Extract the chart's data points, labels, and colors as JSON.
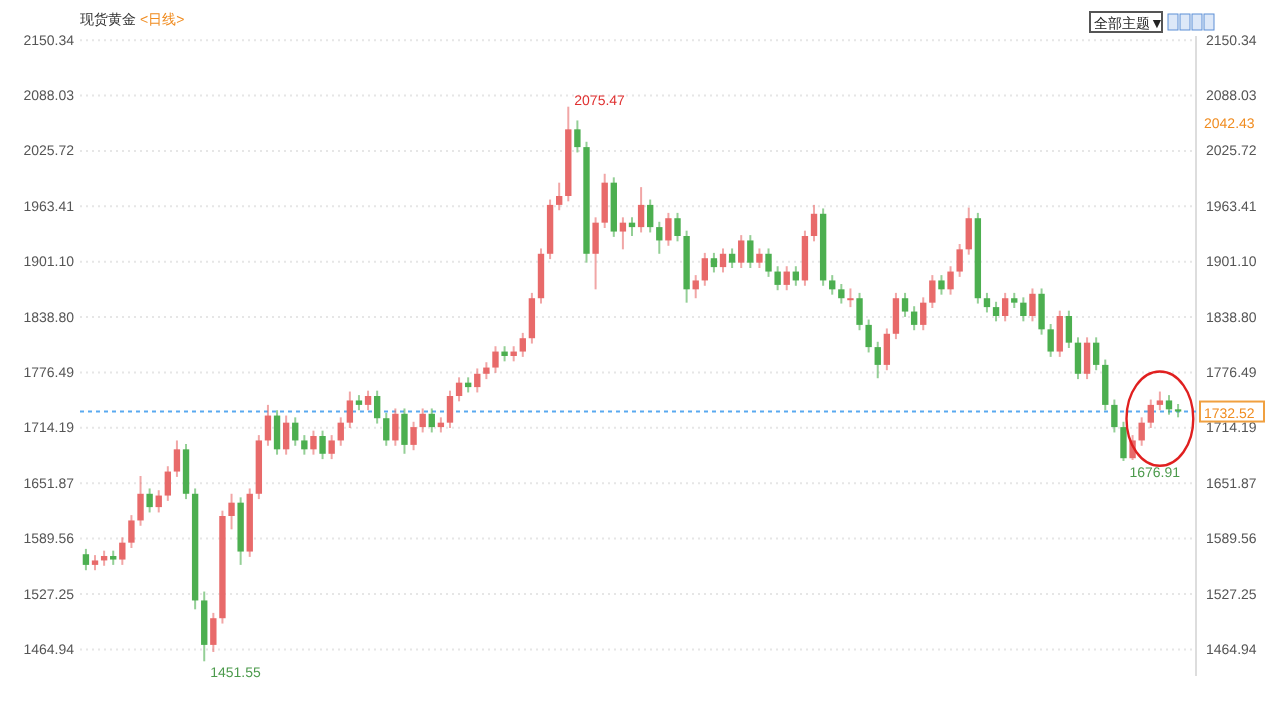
{
  "chart_data": {
    "type": "candlestick",
    "title": "现货黄金",
    "subtitle": "<日线>",
    "categories": [
      null,
      null,
      null,
      null,
      null,
      null,
      null,
      null,
      null,
      null,
      null,
      null,
      null,
      null,
      null,
      null,
      null,
      null,
      null,
      null,
      null,
      null,
      null,
      null,
      null,
      null,
      null,
      null,
      null,
      null,
      null,
      null,
      null,
      null,
      null,
      null,
      null,
      null,
      null,
      null,
      null,
      null,
      null,
      null,
      null,
      null,
      null,
      null,
      null,
      null,
      null,
      null,
      null,
      null,
      null,
      null,
      null,
      null,
      null,
      null,
      null,
      null,
      null,
      null,
      null,
      null,
      null,
      null,
      null,
      null,
      null,
      null,
      null,
      null,
      null,
      null,
      null,
      null,
      null,
      null,
      null,
      null,
      null,
      null,
      null,
      null,
      null,
      null,
      null,
      null,
      null,
      null,
      null,
      null,
      null,
      null,
      null,
      null,
      null,
      null,
      null,
      null,
      null,
      null,
      null,
      null,
      null,
      null,
      null,
      null,
      null,
      null,
      null,
      null,
      null,
      null,
      null,
      null,
      null,
      null,
      null
    ],
    "ohlc": [
      [
        1572,
        1578,
        1554,
        1560
      ],
      [
        1560,
        1571,
        1554,
        1565
      ],
      [
        1565,
        1576,
        1559,
        1570
      ],
      [
        1570,
        1576,
        1560,
        1566
      ],
      [
        1566,
        1591,
        1560,
        1585
      ],
      [
        1585,
        1616,
        1579,
        1610
      ],
      [
        1610,
        1660,
        1604,
        1640
      ],
      [
        1640,
        1646,
        1619,
        1625
      ],
      [
        1625,
        1644,
        1619,
        1638
      ],
      [
        1638,
        1671,
        1632,
        1665
      ],
      [
        1665,
        1700,
        1659,
        1690
      ],
      [
        1690,
        1696,
        1634,
        1640
      ],
      [
        1640,
        1646,
        1510,
        1520
      ],
      [
        1520,
        1530,
        1451.55,
        1470
      ],
      [
        1470,
        1506,
        1462,
        1500
      ],
      [
        1500,
        1621,
        1494,
        1615
      ],
      [
        1615,
        1640,
        1600,
        1630
      ],
      [
        1630,
        1636,
        1560,
        1575
      ],
      [
        1575,
        1646,
        1569,
        1640
      ],
      [
        1640,
        1706,
        1634,
        1700
      ],
      [
        1700,
        1740,
        1694,
        1728
      ],
      [
        1728,
        1734,
        1684,
        1690
      ],
      [
        1690,
        1728,
        1684,
        1720
      ],
      [
        1720,
        1726,
        1694,
        1700
      ],
      [
        1700,
        1706,
        1684,
        1690
      ],
      [
        1690,
        1711,
        1684,
        1705
      ],
      [
        1705,
        1711,
        1679,
        1685
      ],
      [
        1685,
        1706,
        1679,
        1700
      ],
      [
        1700,
        1726,
        1694,
        1720
      ],
      [
        1720,
        1755,
        1714,
        1745
      ],
      [
        1745,
        1751,
        1734,
        1740
      ],
      [
        1740,
        1756,
        1734,
        1750
      ],
      [
        1750,
        1756,
        1719,
        1725
      ],
      [
        1725,
        1731,
        1694,
        1700
      ],
      [
        1700,
        1736,
        1694,
        1730
      ],
      [
        1730,
        1736,
        1685,
        1695
      ],
      [
        1695,
        1721,
        1689,
        1715
      ],
      [
        1715,
        1736,
        1709,
        1730
      ],
      [
        1730,
        1736,
        1709,
        1715
      ],
      [
        1715,
        1726,
        1709,
        1720
      ],
      [
        1720,
        1756,
        1714,
        1750
      ],
      [
        1750,
        1771,
        1744,
        1765
      ],
      [
        1765,
        1771,
        1754,
        1760
      ],
      [
        1760,
        1781,
        1754,
        1775
      ],
      [
        1775,
        1788,
        1769,
        1782
      ],
      [
        1782,
        1806,
        1776,
        1800
      ],
      [
        1800,
        1806,
        1789,
        1795
      ],
      [
        1795,
        1806,
        1789,
        1800
      ],
      [
        1800,
        1821,
        1794,
        1815
      ],
      [
        1815,
        1866,
        1809,
        1860
      ],
      [
        1860,
        1916,
        1854,
        1910
      ],
      [
        1910,
        1971,
        1904,
        1965
      ],
      [
        1965,
        1990,
        1959,
        1975
      ],
      [
        1975,
        2075.47,
        1969,
        2050
      ],
      [
        2050,
        2060,
        2024,
        2030
      ],
      [
        2030,
        2036,
        1900,
        1910
      ],
      [
        1910,
        1951,
        1870,
        1945
      ],
      [
        1945,
        2000,
        1939,
        1990
      ],
      [
        1990,
        1996,
        1929,
        1935
      ],
      [
        1935,
        1951,
        1915,
        1945
      ],
      [
        1945,
        1951,
        1930,
        1940
      ],
      [
        1940,
        1985,
        1934,
        1965
      ],
      [
        1965,
        1971,
        1934,
        1940
      ],
      [
        1940,
        1946,
        1910,
        1925
      ],
      [
        1925,
        1956,
        1919,
        1950
      ],
      [
        1950,
        1956,
        1924,
        1930
      ],
      [
        1930,
        1936,
        1855,
        1870
      ],
      [
        1870,
        1886,
        1860,
        1880
      ],
      [
        1880,
        1911,
        1874,
        1905
      ],
      [
        1905,
        1911,
        1889,
        1895
      ],
      [
        1895,
        1916,
        1889,
        1910
      ],
      [
        1910,
        1916,
        1894,
        1900
      ],
      [
        1900,
        1931,
        1894,
        1925
      ],
      [
        1925,
        1931,
        1894,
        1900
      ],
      [
        1900,
        1916,
        1894,
        1910
      ],
      [
        1910,
        1916,
        1884,
        1890
      ],
      [
        1890,
        1896,
        1869,
        1875
      ],
      [
        1875,
        1896,
        1869,
        1890
      ],
      [
        1890,
        1896,
        1874,
        1880
      ],
      [
        1880,
        1936,
        1874,
        1930
      ],
      [
        1930,
        1965,
        1924,
        1955
      ],
      [
        1955,
        1961,
        1874,
        1880
      ],
      [
        1880,
        1886,
        1864,
        1870
      ],
      [
        1870,
        1876,
        1854,
        1860
      ],
      [
        1858,
        1871,
        1850,
        1860
      ],
      [
        1860,
        1866,
        1824,
        1830
      ],
      [
        1830,
        1836,
        1799,
        1805
      ],
      [
        1805,
        1811,
        1770,
        1785
      ],
      [
        1785,
        1826,
        1779,
        1820
      ],
      [
        1820,
        1866,
        1814,
        1860
      ],
      [
        1860,
        1866,
        1839,
        1845
      ],
      [
        1845,
        1851,
        1824,
        1830
      ],
      [
        1830,
        1861,
        1824,
        1855
      ],
      [
        1855,
        1886,
        1849,
        1880
      ],
      [
        1880,
        1886,
        1864,
        1870
      ],
      [
        1870,
        1896,
        1864,
        1890
      ],
      [
        1890,
        1921,
        1884,
        1915
      ],
      [
        1915,
        1962,
        1909,
        1950
      ],
      [
        1950,
        1956,
        1854,
        1860
      ],
      [
        1860,
        1866,
        1844,
        1850
      ],
      [
        1850,
        1856,
        1834,
        1840
      ],
      [
        1840,
        1866,
        1834,
        1860
      ],
      [
        1860,
        1866,
        1849,
        1855
      ],
      [
        1855,
        1861,
        1834,
        1840
      ],
      [
        1840,
        1871,
        1834,
        1865
      ],
      [
        1865,
        1871,
        1819,
        1825
      ],
      [
        1825,
        1831,
        1794,
        1800
      ],
      [
        1800,
        1846,
        1794,
        1840
      ],
      [
        1840,
        1846,
        1804,
        1810
      ],
      [
        1810,
        1816,
        1769,
        1775
      ],
      [
        1775,
        1816,
        1769,
        1810
      ],
      [
        1810,
        1816,
        1779,
        1785
      ],
      [
        1785,
        1791,
        1734,
        1740
      ],
      [
        1740,
        1746,
        1709,
        1715
      ],
      [
        1715,
        1721,
        1676.91,
        1680
      ],
      [
        1680,
        1706,
        1678,
        1700
      ],
      [
        1700,
        1726,
        1694,
        1720
      ],
      [
        1720,
        1746,
        1714,
        1740
      ],
      [
        1740,
        1755,
        1734,
        1745
      ],
      [
        1745,
        1751,
        1729,
        1735
      ],
      [
        1735,
        1741,
        1726,
        1732.52
      ]
    ],
    "colors": [
      "#4caf50",
      "#e86a6a",
      "#e86a6a",
      "#4caf50",
      "#e86a6a",
      "#e86a6a",
      "#e86a6a",
      "#4caf50",
      "#e86a6a",
      "#e86a6a",
      "#e86a6a",
      "#4caf50",
      "#4caf50",
      "#4caf50",
      "#e86a6a",
      "#e86a6a",
      "#e86a6a",
      "#4caf50",
      "#e86a6a",
      "#e86a6a",
      "#e86a6a",
      "#4caf50",
      "#e86a6a",
      "#4caf50",
      "#4caf50",
      "#e86a6a",
      "#4caf50",
      "#e86a6a",
      "#e86a6a",
      "#e86a6a",
      "#4caf50",
      "#e86a6a",
      "#4caf50",
      "#4caf50",
      "#e86a6a",
      "#4caf50",
      "#e86a6a",
      "#e86a6a",
      "#4caf50",
      "#e86a6a",
      "#e86a6a",
      "#e86a6a",
      "#4caf50",
      "#e86a6a",
      "#e86a6a",
      "#e86a6a",
      "#4caf50",
      "#e86a6a",
      "#e86a6a",
      "#e86a6a",
      "#e86a6a",
      "#e86a6a",
      "#e86a6a",
      "#e86a6a",
      "#4caf50",
      "#4caf50",
      "#e86a6a",
      "#e86a6a",
      "#4caf50",
      "#e86a6a",
      "#4caf50",
      "#e86a6a",
      "#4caf50",
      "#4caf50",
      "#e86a6a",
      "#4caf50",
      "#4caf50",
      "#e86a6a",
      "#e86a6a",
      "#4caf50",
      "#e86a6a",
      "#4caf50",
      "#e86a6a",
      "#4caf50",
      "#e86a6a",
      "#4caf50",
      "#4caf50",
      "#e86a6a",
      "#4caf50",
      "#e86a6a",
      "#e86a6a",
      "#4caf50",
      "#4caf50",
      "#4caf50",
      "#e86a6a",
      "#4caf50",
      "#4caf50",
      "#4caf50",
      "#e86a6a",
      "#e86a6a",
      "#4caf50",
      "#4caf50",
      "#e86a6a",
      "#e86a6a",
      "#4caf50",
      "#e86a6a",
      "#e86a6a",
      "#e86a6a",
      "#4caf50",
      "#4caf50",
      "#4caf50",
      "#e86a6a",
      "#4caf50",
      "#4caf50",
      "#e86a6a",
      "#4caf50",
      "#4caf50",
      "#e86a6a",
      "#4caf50",
      "#4caf50",
      "#e86a6a",
      "#4caf50",
      "#4caf50",
      "#4caf50",
      "#4caf50",
      "#e86a6a",
      "#e86a6a",
      "#e86a6a",
      "#e86a6a",
      "#4caf50",
      "#4caf50"
    ],
    "ylim": [
      1435,
      2155
    ],
    "yticks": [
      1464.94,
      1527.25,
      1589.56,
      1651.87,
      1714.19,
      1776.49,
      {
        "value": 1838.8,
        "label": "1838.80"
      },
      {
        "value": 1901.1,
        "label": "1901.10"
      },
      1963.41,
      2025.72,
      2088.03,
      2150.34
    ],
    "y2lim": [
      1435,
      2155
    ],
    "y2ticks": [
      1464.94,
      1527.25,
      1589.56,
      1651.87,
      1714.19,
      1776.49,
      {
        "value": 1838.8,
        "label": "1838.80"
      },
      {
        "value": 1901.1,
        "label": "1901.10"
      },
      1963.41,
      2025.72,
      2088.03,
      2150.34
    ],
    "grid": "y",
    "ref_lines": [
      {
        "axis": "y",
        "value": 1732.52,
        "label": "1732.52",
        "color": "#5aaaf0",
        "line_style": "dotted"
      }
    ],
    "annotations": [
      "2075.47",
      "1451.55",
      "1676.91",
      "2042.43",
      "全部主题▼"
    ]
  }
}
